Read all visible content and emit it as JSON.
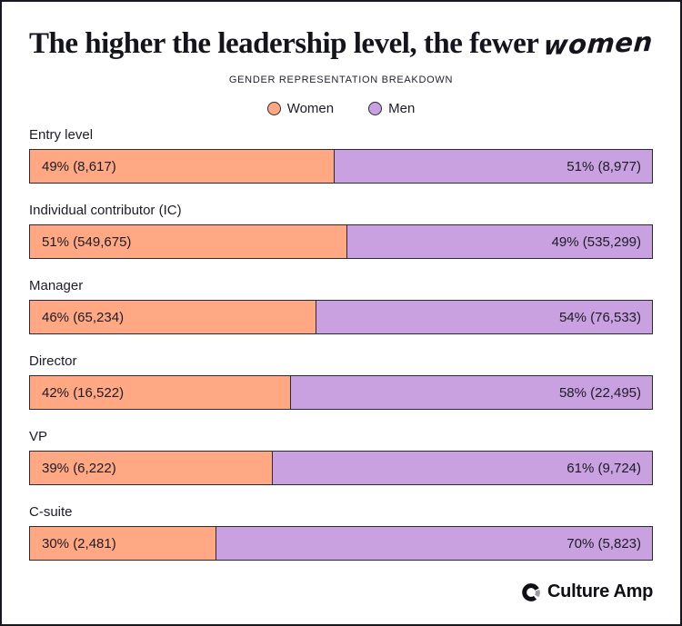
{
  "title": {
    "main": "The higher the leadership level, the fewer",
    "script": "women"
  },
  "subtitle": "GENDER REPRESENTATION BREAKDOWN",
  "legend": [
    {
      "label": "Women",
      "color": "#FFA883"
    },
    {
      "label": "Men",
      "color": "#C9A0E0"
    }
  ],
  "chart_data": {
    "type": "bar",
    "orientation": "horizontal-stacked-100pct",
    "title": "The higher the leadership level, the fewer women",
    "subtitle": "GENDER REPRESENTATION BREAKDOWN",
    "categories": [
      "Entry level",
      "Individual contributor (IC)",
      "Manager",
      "Director",
      "VP",
      "C-suite"
    ],
    "series": [
      {
        "name": "Women",
        "color": "#FFA883",
        "percents": [
          49,
          51,
          46,
          42,
          39,
          30
        ],
        "counts": [
          8617,
          549675,
          65234,
          16522,
          6222,
          2481
        ],
        "labels": [
          "49% (8,617)",
          "51% (549,675)",
          "46% (65,234)",
          "42% (16,522)",
          "39% (6,222)",
          "30% (2,481)"
        ]
      },
      {
        "name": "Men",
        "color": "#C9A0E0",
        "percents": [
          51,
          49,
          54,
          58,
          61,
          70
        ],
        "counts": [
          8977,
          535299,
          76533,
          22495,
          9724,
          5823
        ],
        "labels": [
          "51% (8,977)",
          "49% (535,299)",
          "54% (76,533)",
          "58% (22,495)",
          "61% (9,724)",
          "70% (5,823)"
        ]
      }
    ],
    "legend_position": "top-center",
    "value_label_format": "pct% (count)"
  },
  "footer": {
    "brand": "Culture Amp"
  },
  "colors": {
    "women": "#FFA883",
    "men": "#C9A0E0",
    "bar_border": "#2b2b33",
    "ink": "#1c1c26",
    "frame_border": "#17171f",
    "background": "#ffffff"
  }
}
